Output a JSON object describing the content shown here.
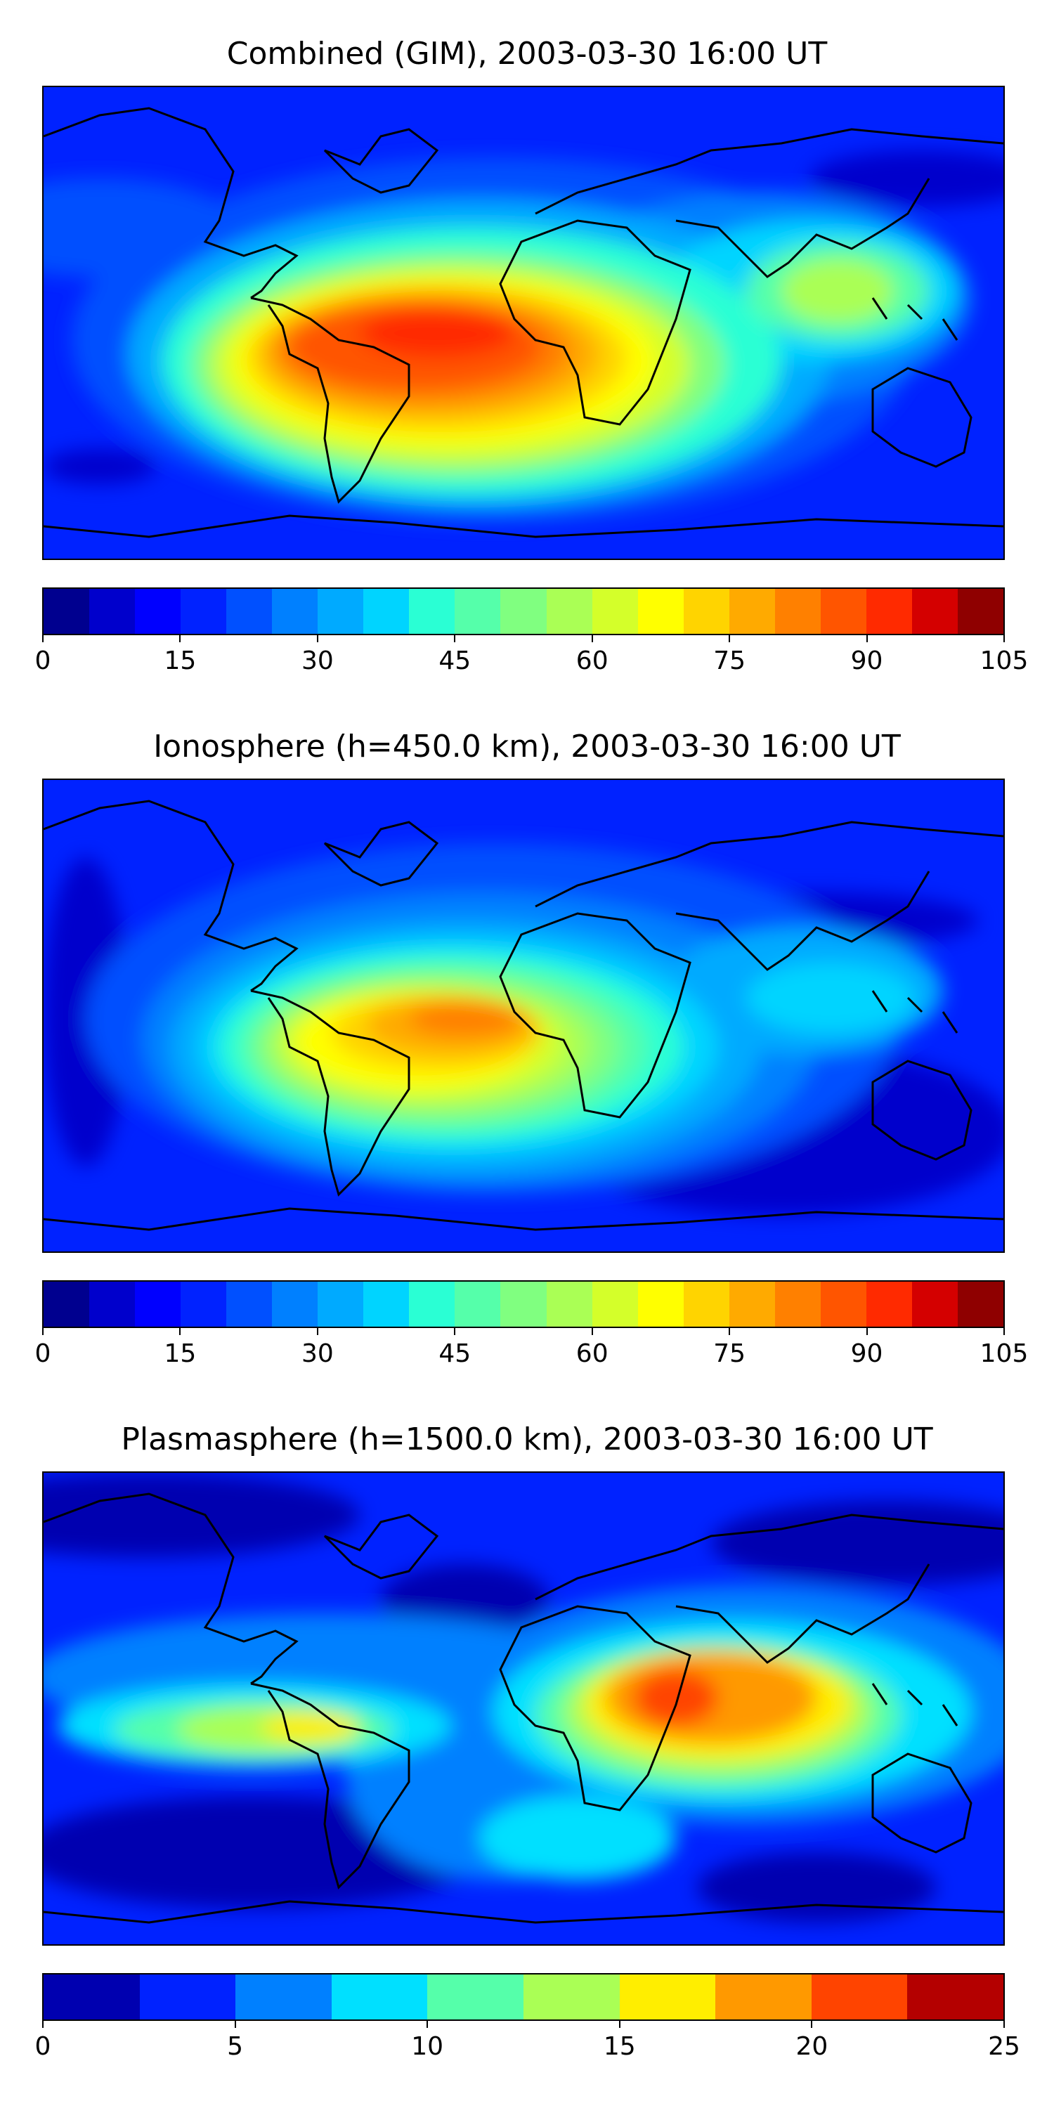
{
  "panels": [
    {
      "title": "Combined (GIM), 2003-03-30 16:00 UT",
      "colorbar": {
        "ticks": [
          "0",
          "15",
          "30",
          "45",
          "60",
          "75",
          "90",
          "105"
        ],
        "colors": [
          "#00008f",
          "#0000cc",
          "#0000ff",
          "#0022ff",
          "#0050ff",
          "#0080ff",
          "#00aaff",
          "#00d4ff",
          "#2affd4",
          "#55ffaa",
          "#80ff80",
          "#aaff55",
          "#d4ff2a",
          "#ffff00",
          "#ffd400",
          "#ffaa00",
          "#ff8000",
          "#ff5500",
          "#ff2a00",
          "#d40000",
          "#8f0000"
        ]
      },
      "field_description_values": {
        "max_region": "South America / equatorial Atlantic / Africa",
        "approx_max": 90
      }
    },
    {
      "title": "Ionosphere  (h=450.0 km), 2003-03-30 16:00 UT",
      "colorbar": {
        "ticks": [
          "0",
          "15",
          "30",
          "45",
          "60",
          "75",
          "90",
          "105"
        ],
        "colors": [
          "#00008f",
          "#0000cc",
          "#0000ff",
          "#0022ff",
          "#0050ff",
          "#0080ff",
          "#00aaff",
          "#00d4ff",
          "#2affd4",
          "#55ffaa",
          "#80ff80",
          "#aaff55",
          "#d4ff2a",
          "#ffff00",
          "#ffd400",
          "#ffaa00",
          "#ff8000",
          "#ff5500",
          "#ff2a00",
          "#d40000",
          "#8f0000"
        ]
      },
      "field_description_values": {
        "max_region": "South America / equatorial Atlantic",
        "approx_max": 80
      }
    },
    {
      "title": "Plasmasphere (h=1500.0 km), 2003-03-30 16:00 UT",
      "colorbar": {
        "ticks": [
          "0",
          "5",
          "10",
          "15",
          "20",
          "25"
        ],
        "colors": [
          "#0000b0",
          "#0022ff",
          "#0080ff",
          "#00e0ff",
          "#55ffaa",
          "#aaff55",
          "#ffee00",
          "#ff9900",
          "#ff4400",
          "#b40000"
        ]
      },
      "field_description_values": {
        "max_region": "Arabian Sea / India",
        "approx_max": 21
      }
    }
  ]
}
